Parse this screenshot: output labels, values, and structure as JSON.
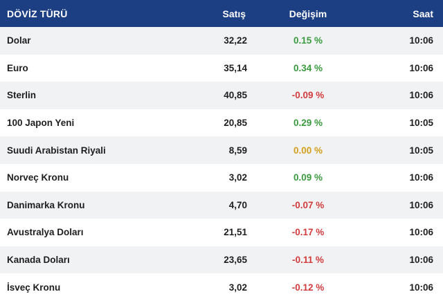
{
  "header": {
    "name": "DÖVİZ TÜRÜ",
    "sell": "Satış",
    "change": "Değişim",
    "time": "Saat"
  },
  "colors": {
    "header_bg": "#1c3f83",
    "up": "#3a9a3e",
    "down": "#d23c3c",
    "flat": "#d2a01e",
    "row_alt": "#f1f2f4"
  },
  "rows": [
    {
      "name": "Dolar",
      "sell": "32,22",
      "change": "0.15 %",
      "trend": "up",
      "time": "10:06"
    },
    {
      "name": "Euro",
      "sell": "35,14",
      "change": "0.34 %",
      "trend": "up",
      "time": "10:06"
    },
    {
      "name": "Sterlin",
      "sell": "40,85",
      "change": "-0.09 %",
      "trend": "down",
      "time": "10:06"
    },
    {
      "name": "100 Japon Yeni",
      "sell": "20,85",
      "change": "0.29 %",
      "trend": "up",
      "time": "10:05"
    },
    {
      "name": "Suudi Arabistan Riyali",
      "sell": "8,59",
      "change": "0.00 %",
      "trend": "flat",
      "time": "10:05"
    },
    {
      "name": "Norveç Kronu",
      "sell": "3,02",
      "change": "0.09 %",
      "trend": "up",
      "time": "10:06"
    },
    {
      "name": "Danimarka Kronu",
      "sell": "4,70",
      "change": "-0.07 %",
      "trend": "down",
      "time": "10:06"
    },
    {
      "name": "Avustralya Doları",
      "sell": "21,51",
      "change": "-0.17 %",
      "trend": "down",
      "time": "10:06"
    },
    {
      "name": "Kanada Doları",
      "sell": "23,65",
      "change": "-0.11 %",
      "trend": "down",
      "time": "10:06"
    },
    {
      "name": "İsveç Kronu",
      "sell": "3,02",
      "change": "-0.12 %",
      "trend": "down",
      "time": "10:06"
    }
  ]
}
